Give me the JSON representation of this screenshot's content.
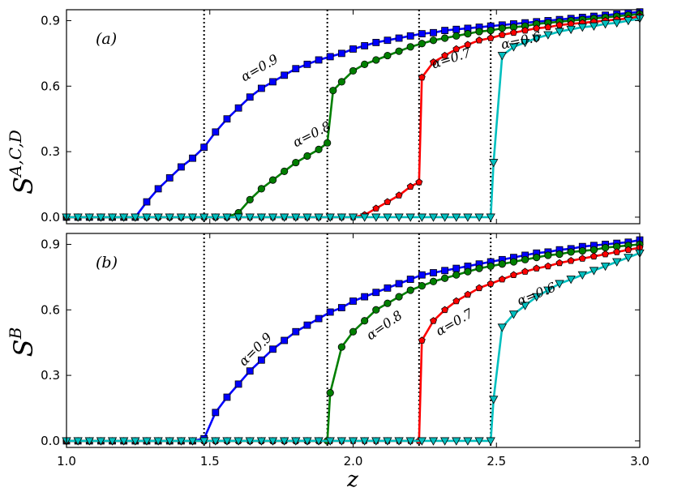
{
  "chart_data": [
    {
      "type": "line",
      "panel_tag": "(a)",
      "ylabel": {
        "base": "S",
        "sup": "A,C,D"
      },
      "xlabel": "",
      "xlim": [
        1.0,
        3.0
      ],
      "ylim": [
        -0.03,
        0.95
      ],
      "yticks": [
        0.0,
        0.3,
        0.6,
        0.9
      ],
      "ytick_labels": [
        "0.0",
        "0.3",
        "0.6",
        "0.9"
      ],
      "transitions": [
        1.48,
        1.91,
        2.23,
        2.48
      ],
      "series": [
        {
          "name": "α=0.9",
          "label": "α=0.9",
          "color": "#0000ff",
          "marker": "square",
          "x": [
            1.0,
            1.04,
            1.08,
            1.12,
            1.16,
            1.2,
            1.24,
            1.28,
            1.32,
            1.36,
            1.4,
            1.44,
            1.48,
            1.52,
            1.56,
            1.6,
            1.64,
            1.68,
            1.72,
            1.76,
            1.8,
            1.84,
            1.88,
            1.92,
            1.96,
            2.0,
            2.04,
            2.08,
            2.12,
            2.16,
            2.2,
            2.24,
            2.28,
            2.32,
            2.36,
            2.4,
            2.44,
            2.48,
            2.52,
            2.56,
            2.6,
            2.64,
            2.68,
            2.72,
            2.76,
            2.8,
            2.84,
            2.88,
            2.92,
            2.96,
            3.0
          ],
          "y": [
            0,
            0,
            0,
            0,
            0,
            0,
            0,
            0.07,
            0.13,
            0.18,
            0.23,
            0.27,
            0.32,
            0.39,
            0.45,
            0.5,
            0.55,
            0.59,
            0.62,
            0.65,
            0.68,
            0.7,
            0.72,
            0.735,
            0.75,
            0.77,
            0.785,
            0.8,
            0.81,
            0.82,
            0.83,
            0.84,
            0.845,
            0.855,
            0.86,
            0.865,
            0.87,
            0.875,
            0.88,
            0.885,
            0.89,
            0.895,
            0.9,
            0.905,
            0.91,
            0.915,
            0.92,
            0.925,
            0.93,
            0.935,
            0.94
          ]
        },
        {
          "name": "α=0.8",
          "label": "α=0.8",
          "color": "#007f00",
          "marker": "circle",
          "x": [
            1.0,
            1.04,
            1.08,
            1.12,
            1.16,
            1.2,
            1.24,
            1.28,
            1.32,
            1.36,
            1.4,
            1.44,
            1.48,
            1.52,
            1.56,
            1.6,
            1.64,
            1.68,
            1.72,
            1.76,
            1.8,
            1.84,
            1.88,
            1.91,
            1.93,
            1.96,
            2.0,
            2.04,
            2.08,
            2.12,
            2.16,
            2.2,
            2.24,
            2.28,
            2.32,
            2.36,
            2.4,
            2.44,
            2.48,
            2.52,
            2.56,
            2.6,
            2.64,
            2.68,
            2.72,
            2.76,
            2.8,
            2.84,
            2.88,
            2.92,
            2.96,
            3.0
          ],
          "y": [
            0,
            0,
            0,
            0,
            0,
            0,
            0,
            0,
            0,
            0,
            0,
            0,
            0,
            0,
            0,
            0.02,
            0.08,
            0.13,
            0.17,
            0.21,
            0.25,
            0.28,
            0.31,
            0.34,
            0.58,
            0.62,
            0.67,
            0.7,
            0.72,
            0.74,
            0.76,
            0.78,
            0.795,
            0.81,
            0.82,
            0.83,
            0.84,
            0.85,
            0.855,
            0.865,
            0.87,
            0.875,
            0.885,
            0.89,
            0.895,
            0.9,
            0.905,
            0.91,
            0.915,
            0.92,
            0.925,
            0.93
          ]
        },
        {
          "name": "α=0.7",
          "label": "α=0.7",
          "color": "#ff0000",
          "marker": "pentagon",
          "x": [
            1.0,
            1.04,
            1.08,
            1.12,
            1.16,
            1.2,
            1.24,
            1.28,
            1.32,
            1.36,
            1.4,
            1.44,
            1.48,
            1.52,
            1.56,
            1.6,
            1.64,
            1.68,
            1.72,
            1.76,
            1.8,
            1.84,
            1.88,
            1.92,
            1.96,
            2.0,
            2.04,
            2.08,
            2.12,
            2.16,
            2.2,
            2.23,
            2.24,
            2.28,
            2.32,
            2.36,
            2.4,
            2.44,
            2.48,
            2.52,
            2.56,
            2.6,
            2.64,
            2.68,
            2.72,
            2.76,
            2.8,
            2.84,
            2.88,
            2.92,
            2.96,
            3.0
          ],
          "y": [
            0,
            0,
            0,
            0,
            0,
            0,
            0,
            0,
            0,
            0,
            0,
            0,
            0,
            0,
            0,
            0,
            0,
            0,
            0,
            0,
            0,
            0,
            0,
            0,
            0,
            0,
            0.01,
            0.04,
            0.07,
            0.1,
            0.14,
            0.16,
            0.64,
            0.71,
            0.74,
            0.77,
            0.79,
            0.81,
            0.82,
            0.835,
            0.845,
            0.855,
            0.865,
            0.87,
            0.88,
            0.885,
            0.89,
            0.895,
            0.9,
            0.905,
            0.91,
            0.92
          ]
        },
        {
          "name": "α=0.6",
          "label": "α=0.6",
          "color": "#00bfbf",
          "marker": "triangle-down",
          "x": [
            1.0,
            1.04,
            1.08,
            1.12,
            1.16,
            1.2,
            1.24,
            1.28,
            1.32,
            1.36,
            1.4,
            1.44,
            1.48,
            1.52,
            1.56,
            1.6,
            1.64,
            1.68,
            1.72,
            1.76,
            1.8,
            1.84,
            1.88,
            1.92,
            1.96,
            2.0,
            2.04,
            2.08,
            2.12,
            2.16,
            2.2,
            2.24,
            2.28,
            2.32,
            2.36,
            2.4,
            2.44,
            2.48,
            2.49,
            2.52,
            2.56,
            2.6,
            2.64,
            2.68,
            2.72,
            2.76,
            2.8,
            2.84,
            2.88,
            2.92,
            2.96,
            3.0
          ],
          "y": [
            0,
            0,
            0,
            0,
            0,
            0,
            0,
            0,
            0,
            0,
            0,
            0,
            0,
            0,
            0,
            0,
            0,
            0,
            0,
            0,
            0,
            0,
            0,
            0,
            0,
            0,
            0,
            0,
            0,
            0,
            0,
            0,
            0,
            0,
            0,
            0,
            0,
            0,
            0.25,
            0.74,
            0.78,
            0.8,
            0.82,
            0.835,
            0.85,
            0.86,
            0.87,
            0.875,
            0.885,
            0.89,
            0.9,
            0.91
          ]
        }
      ]
    },
    {
      "type": "line",
      "panel_tag": "(b)",
      "ylabel": {
        "base": "S",
        "sup": "B"
      },
      "xlabel": "z",
      "xlim": [
        1.0,
        3.0
      ],
      "ylim": [
        -0.03,
        0.95
      ],
      "yticks": [
        0.0,
        0.3,
        0.6,
        0.9
      ],
      "ytick_labels": [
        "0.0",
        "0.3",
        "0.6",
        "0.9"
      ],
      "xticks": [
        1.0,
        1.5,
        2.0,
        2.5,
        3.0
      ],
      "xtick_labels": [
        "1.0",
        "1.5",
        "2.0",
        "2.5",
        "3.0"
      ],
      "transitions": [
        1.48,
        1.91,
        2.23,
        2.48
      ],
      "series": [
        {
          "name": "α=0.9",
          "label": "α=0.9",
          "color": "#0000ff",
          "marker": "square",
          "x": [
            1.0,
            1.04,
            1.08,
            1.12,
            1.16,
            1.2,
            1.24,
            1.28,
            1.32,
            1.36,
            1.4,
            1.44,
            1.48,
            1.52,
            1.56,
            1.6,
            1.64,
            1.68,
            1.72,
            1.76,
            1.8,
            1.84,
            1.88,
            1.92,
            1.96,
            2.0,
            2.04,
            2.08,
            2.12,
            2.16,
            2.2,
            2.24,
            2.28,
            2.32,
            2.36,
            2.4,
            2.44,
            2.48,
            2.52,
            2.56,
            2.6,
            2.64,
            2.68,
            2.72,
            2.76,
            2.8,
            2.84,
            2.88,
            2.92,
            2.96,
            3.0
          ],
          "y": [
            0,
            0,
            0,
            0,
            0,
            0,
            0,
            0,
            0,
            0,
            0,
            0,
            0.01,
            0.13,
            0.2,
            0.26,
            0.32,
            0.37,
            0.42,
            0.46,
            0.5,
            0.53,
            0.56,
            0.59,
            0.61,
            0.64,
            0.66,
            0.68,
            0.7,
            0.72,
            0.74,
            0.76,
            0.77,
            0.78,
            0.79,
            0.8,
            0.81,
            0.82,
            0.83,
            0.84,
            0.85,
            0.86,
            0.865,
            0.875,
            0.88,
            0.89,
            0.895,
            0.9,
            0.905,
            0.91,
            0.92
          ]
        },
        {
          "name": "α=0.8",
          "label": "α=0.8",
          "color": "#007f00",
          "marker": "circle",
          "x": [
            1.0,
            1.04,
            1.08,
            1.12,
            1.16,
            1.2,
            1.24,
            1.28,
            1.32,
            1.36,
            1.4,
            1.44,
            1.48,
            1.52,
            1.56,
            1.6,
            1.64,
            1.68,
            1.72,
            1.76,
            1.8,
            1.84,
            1.88,
            1.91,
            1.92,
            1.96,
            2.0,
            2.04,
            2.08,
            2.12,
            2.16,
            2.2,
            2.24,
            2.28,
            2.32,
            2.36,
            2.4,
            2.44,
            2.48,
            2.52,
            2.56,
            2.6,
            2.64,
            2.68,
            2.72,
            2.76,
            2.8,
            2.84,
            2.88,
            2.92,
            2.96,
            3.0
          ],
          "y": [
            0,
            0,
            0,
            0,
            0,
            0,
            0,
            0,
            0,
            0,
            0,
            0,
            0,
            0,
            0,
            0,
            0,
            0,
            0,
            0,
            0,
            0,
            0,
            0,
            0.22,
            0.43,
            0.5,
            0.55,
            0.6,
            0.63,
            0.66,
            0.69,
            0.71,
            0.73,
            0.745,
            0.76,
            0.775,
            0.79,
            0.8,
            0.81,
            0.82,
            0.83,
            0.84,
            0.85,
            0.855,
            0.865,
            0.87,
            0.875,
            0.885,
            0.89,
            0.895,
            0.9
          ]
        },
        {
          "name": "α=0.7",
          "label": "α=0.7",
          "color": "#ff0000",
          "marker": "pentagon",
          "x": [
            1.0,
            1.04,
            1.08,
            1.12,
            1.16,
            1.2,
            1.24,
            1.28,
            1.32,
            1.36,
            1.4,
            1.44,
            1.48,
            1.52,
            1.56,
            1.6,
            1.64,
            1.68,
            1.72,
            1.76,
            1.8,
            1.84,
            1.88,
            1.92,
            1.96,
            2.0,
            2.04,
            2.08,
            2.12,
            2.16,
            2.2,
            2.23,
            2.24,
            2.28,
            2.32,
            2.36,
            2.4,
            2.44,
            2.48,
            2.52,
            2.56,
            2.6,
            2.64,
            2.68,
            2.72,
            2.76,
            2.8,
            2.84,
            2.88,
            2.92,
            2.96,
            3.0
          ],
          "y": [
            0,
            0,
            0,
            0,
            0,
            0,
            0,
            0,
            0,
            0,
            0,
            0,
            0,
            0,
            0,
            0,
            0,
            0,
            0,
            0,
            0,
            0,
            0,
            0,
            0,
            0,
            0,
            0,
            0,
            0,
            0,
            0,
            0.46,
            0.55,
            0.6,
            0.64,
            0.67,
            0.7,
            0.72,
            0.74,
            0.76,
            0.775,
            0.79,
            0.8,
            0.815,
            0.825,
            0.835,
            0.845,
            0.855,
            0.865,
            0.875,
            0.885
          ]
        },
        {
          "name": "α=0.6",
          "label": "α=0.6",
          "color": "#00bfbf",
          "marker": "triangle-down",
          "x": [
            1.0,
            1.04,
            1.08,
            1.12,
            1.16,
            1.2,
            1.24,
            1.28,
            1.32,
            1.36,
            1.4,
            1.44,
            1.48,
            1.52,
            1.56,
            1.6,
            1.64,
            1.68,
            1.72,
            1.76,
            1.8,
            1.84,
            1.88,
            1.92,
            1.96,
            2.0,
            2.04,
            2.08,
            2.12,
            2.16,
            2.2,
            2.24,
            2.28,
            2.32,
            2.36,
            2.4,
            2.44,
            2.48,
            2.49,
            2.52,
            2.56,
            2.6,
            2.64,
            2.68,
            2.72,
            2.76,
            2.8,
            2.84,
            2.88,
            2.92,
            2.96,
            3.0
          ],
          "y": [
            0,
            0,
            0,
            0,
            0,
            0,
            0,
            0,
            0,
            0,
            0,
            0,
            0,
            0,
            0,
            0,
            0,
            0,
            0,
            0,
            0,
            0,
            0,
            0,
            0,
            0,
            0,
            0,
            0,
            0,
            0,
            0,
            0,
            0,
            0,
            0,
            0,
            0,
            0.19,
            0.52,
            0.58,
            0.62,
            0.66,
            0.69,
            0.72,
            0.74,
            0.76,
            0.78,
            0.8,
            0.82,
            0.84,
            0.86
          ]
        }
      ]
    }
  ]
}
